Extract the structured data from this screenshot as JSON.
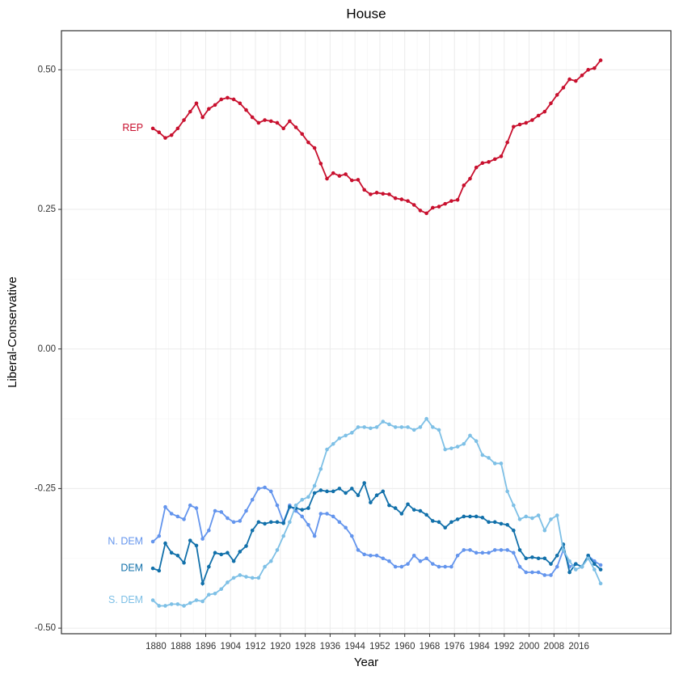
{
  "chart_data": {
    "type": "line",
    "title": "House",
    "xlabel": "Year",
    "ylabel": "Liberal-Conservative",
    "x": [
      1879,
      1881,
      1883,
      1885,
      1887,
      1889,
      1891,
      1893,
      1895,
      1897,
      1899,
      1901,
      1903,
      1905,
      1907,
      1909,
      1911,
      1913,
      1915,
      1917,
      1919,
      1921,
      1923,
      1925,
      1927,
      1929,
      1931,
      1933,
      1935,
      1937,
      1939,
      1941,
      1943,
      1945,
      1947,
      1949,
      1951,
      1953,
      1955,
      1957,
      1959,
      1961,
      1963,
      1965,
      1967,
      1969,
      1971,
      1973,
      1975,
      1977,
      1979,
      1981,
      1983,
      1985,
      1987,
      1989,
      1991,
      1993,
      1995,
      1997,
      1999,
      2001,
      2003,
      2005,
      2007,
      2009,
      2011,
      2013,
      2015,
      2017,
      2019,
      2021,
      2023
    ],
    "series": [
      {
        "name": "REP",
        "color": "#c8102e",
        "values": [
          0.395,
          0.388,
          0.378,
          0.383,
          0.395,
          0.41,
          0.425,
          0.44,
          0.415,
          0.43,
          0.437,
          0.447,
          0.45,
          0.447,
          0.44,
          0.428,
          0.415,
          0.405,
          0.41,
          0.408,
          0.405,
          0.395,
          0.408,
          0.397,
          0.385,
          0.37,
          0.36,
          0.332,
          0.305,
          0.315,
          0.31,
          0.313,
          0.302,
          0.303,
          0.285,
          0.277,
          0.28,
          0.278,
          0.277,
          0.27,
          0.268,
          0.265,
          0.258,
          0.248,
          0.243,
          0.253,
          0.255,
          0.26,
          0.265,
          0.267,
          0.293,
          0.305,
          0.325,
          0.333,
          0.335,
          0.34,
          0.345,
          0.37,
          0.398,
          0.402,
          0.405,
          0.41,
          0.418,
          0.425,
          0.44,
          0.455,
          0.468,
          0.483,
          0.48,
          0.49,
          0.5,
          0.503,
          0.517
        ]
      },
      {
        "name": "N. DEM",
        "color": "#6495ed",
        "values": [
          -0.345,
          -0.335,
          -0.283,
          -0.295,
          -0.3,
          -0.305,
          -0.28,
          -0.285,
          -0.34,
          -0.325,
          -0.29,
          -0.292,
          -0.303,
          -0.31,
          -0.308,
          -0.29,
          -0.27,
          -0.25,
          -0.248,
          -0.255,
          -0.28,
          -0.31,
          -0.28,
          -0.29,
          -0.3,
          -0.315,
          -0.335,
          -0.295,
          -0.295,
          -0.3,
          -0.31,
          -0.32,
          -0.335,
          -0.36,
          -0.368,
          -0.37,
          -0.37,
          -0.375,
          -0.38,
          -0.39,
          -0.39,
          -0.385,
          -0.37,
          -0.38,
          -0.375,
          -0.385,
          -0.39,
          -0.39,
          -0.39,
          -0.37,
          -0.36,
          -0.36,
          -0.365,
          -0.365,
          -0.365,
          -0.36,
          -0.36,
          -0.36,
          -0.365,
          -0.39,
          -0.4,
          -0.4,
          -0.4,
          -0.405,
          -0.405,
          -0.39,
          -0.36,
          -0.39,
          -0.385,
          -0.39,
          -0.37,
          -0.38,
          -0.387
        ]
      },
      {
        "name": "DEM",
        "color": "#1170aa",
        "values": [
          -0.393,
          -0.397,
          -0.348,
          -0.365,
          -0.37,
          -0.383,
          -0.343,
          -0.352,
          -0.42,
          -0.39,
          -0.365,
          -0.368,
          -0.365,
          -0.38,
          -0.363,
          -0.353,
          -0.325,
          -0.31,
          -0.313,
          -0.31,
          -0.31,
          -0.312,
          -0.283,
          -0.285,
          -0.288,
          -0.285,
          -0.258,
          -0.253,
          -0.255,
          -0.255,
          -0.25,
          -0.258,
          -0.25,
          -0.262,
          -0.24,
          -0.275,
          -0.262,
          -0.255,
          -0.28,
          -0.285,
          -0.295,
          -0.278,
          -0.288,
          -0.29,
          -0.297,
          -0.308,
          -0.31,
          -0.32,
          -0.31,
          -0.305,
          -0.3,
          -0.3,
          -0.3,
          -0.302,
          -0.31,
          -0.31,
          -0.313,
          -0.315,
          -0.325,
          -0.36,
          -0.375,
          -0.373,
          -0.375,
          -0.375,
          -0.385,
          -0.37,
          -0.35,
          -0.4,
          -0.385,
          -0.39,
          -0.37,
          -0.385,
          -0.395
        ]
      },
      {
        "name": "S. DEM",
        "color": "#7ec0e6",
        "values": [
          -0.45,
          -0.46,
          -0.46,
          -0.457,
          -0.457,
          -0.46,
          -0.455,
          -0.45,
          -0.452,
          -0.44,
          -0.438,
          -0.43,
          -0.418,
          -0.41,
          -0.405,
          -0.408,
          -0.41,
          -0.41,
          -0.39,
          -0.38,
          -0.36,
          -0.335,
          -0.31,
          -0.28,
          -0.27,
          -0.265,
          -0.245,
          -0.215,
          -0.18,
          -0.17,
          -0.16,
          -0.155,
          -0.15,
          -0.14,
          -0.14,
          -0.142,
          -0.14,
          -0.13,
          -0.135,
          -0.14,
          -0.14,
          -0.14,
          -0.145,
          -0.14,
          -0.125,
          -0.14,
          -0.145,
          -0.18,
          -0.178,
          -0.175,
          -0.17,
          -0.155,
          -0.165,
          -0.19,
          -0.195,
          -0.205,
          -0.205,
          -0.255,
          -0.28,
          -0.305,
          -0.3,
          -0.303,
          -0.298,
          -0.325,
          -0.305,
          -0.298,
          -0.36,
          -0.38,
          -0.395,
          -0.39,
          -0.375,
          -0.395,
          -0.42
        ]
      }
    ],
    "xlim": [
      1849.6,
      2045.6
    ],
    "xticks": [
      1880,
      1888,
      1896,
      1904,
      1912,
      1920,
      1928,
      1936,
      1944,
      1952,
      1960,
      1968,
      1976,
      1984,
      1992,
      2000,
      2008,
      2016
    ],
    "ylim": [
      -0.51,
      0.57
    ],
    "yticks": [
      {
        "value": -0.5,
        "label": "-0.50"
      },
      {
        "value": -0.25,
        "label": "-0.25"
      },
      {
        "value": 0,
        "label": "0.00"
      },
      {
        "value": 0.25,
        "label": "0.25"
      },
      {
        "value": 0.5,
        "label": "0.50"
      }
    ],
    "grid": true
  }
}
